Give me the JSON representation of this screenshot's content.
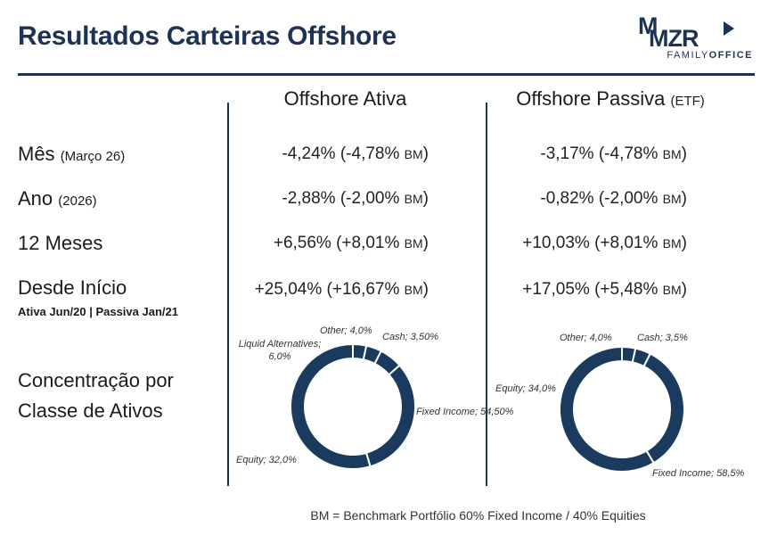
{
  "header": {
    "title": "Resultados Carteiras Offshore",
    "logo_mark_1": "M",
    "logo_mark_2": "MZR",
    "logo_sub_1": "FAMILY",
    "logo_sub_2": "OFFICE"
  },
  "columns": {
    "ativa": {
      "title": "Offshore Ativa"
    },
    "passiva": {
      "title": "Offshore Passiva",
      "title_suffix": "(ETF)"
    }
  },
  "rows": [
    {
      "label": "Mês",
      "label_suffix": "(Março 26)",
      "ativa_value": "-4,24% (-4,78%",
      "passiva_value": "-3,17% (-4,78%"
    },
    {
      "label": "Ano",
      "label_suffix": "(2026)",
      "ativa_value": "-2,88% (-2,00%",
      "passiva_value": "-0,82% (-2,00%"
    },
    {
      "label": "12 Meses",
      "label_suffix": "",
      "ativa_value": "+6,56% (+8,01%",
      "passiva_value": "+10,03% (+8,01%"
    },
    {
      "label": "Desde Início",
      "label_suffix": "",
      "ativa_value": "+25,04% (+16,67%",
      "passiva_value": "+17,05% (+5,48%"
    }
  ],
  "bm_tag": "BM",
  "close_paren": ")",
  "inception_note": "Ativa  Jun/20 | Passiva Jan/21",
  "concentration": {
    "line1": "Concentração por",
    "line2": "Classe de Ativos"
  },
  "chart_data": [
    {
      "type": "pie",
      "title": "Offshore Ativa",
      "categories": [
        "Fixed Income",
        "Equity",
        "Liquid Alternatives",
        "Other",
        "Cash"
      ],
      "values": [
        54.5,
        32.0,
        6.0,
        4.0,
        3.5
      ],
      "labels": [
        "Fixed Income; 54,50%",
        "Equity; 32,0%",
        "Liquid Alternatives; 6,0%",
        "Other; 4,0%",
        "Cash; 3,50%"
      ]
    },
    {
      "type": "pie",
      "title": "Offshore Passiva",
      "categories": [
        "Fixed Income",
        "Equity",
        "Other",
        "Cash"
      ],
      "values": [
        58.5,
        34.0,
        4.0,
        3.5
      ],
      "labels": [
        "Fixed Income; 58,5%",
        "Equity; 34,0%",
        "Other; 4,0%",
        "Cash; 3,5%"
      ]
    }
  ],
  "colors": {
    "navy": "#1e3354",
    "slice": "#1a3a5e",
    "separator": "#ffffff"
  },
  "footer": "BM = Benchmark Portfólio 60% Fixed Income / 40% Equities"
}
